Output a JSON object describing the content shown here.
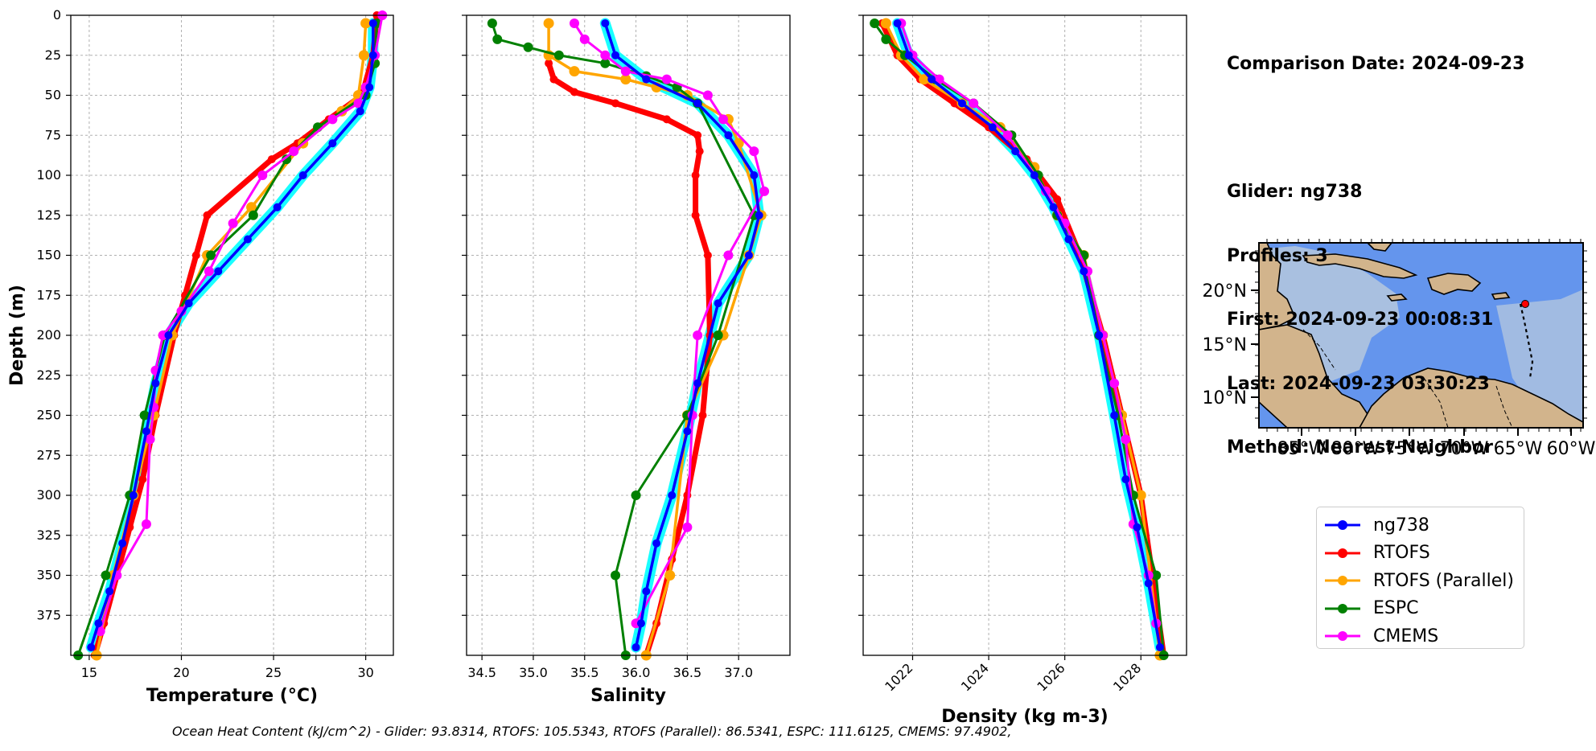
{
  "chart_data": [
    {
      "type": "line",
      "panel": "temperature",
      "xlabel": "Temperature ($^{o}C$)",
      "xlabel_display": "Temperature (°C)",
      "ylabel": "Depth (m)",
      "xlim": [
        14,
        31.5
      ],
      "ylim": [
        400,
        0
      ],
      "xticks": [
        15,
        20,
        25,
        30
      ],
      "yticks": [
        0,
        25,
        50,
        75,
        100,
        125,
        150,
        175,
        200,
        225,
        250,
        275,
        300,
        325,
        350,
        375
      ],
      "grid": true,
      "series": [
        {
          "name": "ng738",
          "color": "#0000ff",
          "x": [
            30.4,
            30.4,
            30.2,
            29.7,
            28.2,
            26.6,
            25.2,
            23.6,
            22.0,
            20.4,
            19.3,
            18.6,
            18.1,
            17.4,
            16.8,
            16.1,
            15.5,
            15.1
          ],
          "y": [
            5,
            25,
            45,
            60,
            80,
            100,
            120,
            140,
            160,
            180,
            200,
            230,
            260,
            300,
            330,
            360,
            380,
            395
          ]
        },
        {
          "name": "RTOFS",
          "color": "#ff0000",
          "x": [
            30.6,
            30.4,
            29.8,
            28.0,
            26.3,
            24.9,
            21.4,
            20.8,
            20.2,
            19.6,
            18.6,
            17.9,
            17.2,
            16.5,
            15.8,
            15.3
          ],
          "y": [
            0,
            25,
            50,
            65,
            80,
            90,
            125,
            150,
            175,
            200,
            250,
            290,
            320,
            350,
            380,
            400
          ]
        },
        {
          "name": "RTOFS (Parallel)",
          "color": "#ffa500",
          "x": [
            30.0,
            29.9,
            29.6,
            28.7,
            26.6,
            23.8,
            21.4,
            19.5,
            18.5,
            17.4,
            16.3,
            15.4
          ],
          "y": [
            5,
            25,
            50,
            60,
            80,
            120,
            150,
            200,
            250,
            300,
            350,
            400
          ]
        },
        {
          "name": "ESPC",
          "color": "#008000",
          "x": [
            30.6,
            30.5,
            30.0,
            27.4,
            25.7,
            23.9,
            21.6,
            19.1,
            18.0,
            17.2,
            15.9,
            14.4
          ],
          "y": [
            5,
            30,
            50,
            70,
            90,
            125,
            150,
            200,
            250,
            300,
            350,
            400
          ]
        },
        {
          "name": "CMEMS",
          "color": "#ff00ff",
          "x": [
            30.9,
            30.5,
            30.0,
            29.6,
            28.2,
            26.1,
            24.4,
            22.8,
            21.5,
            20.0,
            19.0,
            18.6,
            18.5,
            18.3,
            18.1,
            16.5,
            15.6
          ],
          "y": [
            0,
            25,
            45,
            55,
            65,
            85,
            100,
            130,
            160,
            185,
            200,
            222,
            245,
            265,
            318,
            350,
            385
          ]
        }
      ]
    },
    {
      "type": "line",
      "panel": "salinity",
      "xlabel": "Salinity",
      "xlim": [
        34.35,
        37.5
      ],
      "ylim": [
        400,
        0
      ],
      "xticks": [
        34.5,
        35.0,
        35.5,
        36.0,
        36.5,
        37.0
      ],
      "xtick_labels": [
        "34.5",
        "35.0",
        "35.5",
        "36.0",
        "36.5",
        "37.0"
      ],
      "grid": true,
      "series": [
        {
          "name": "ng738",
          "color": "#0000ff",
          "x": [
            35.7,
            35.8,
            36.1,
            36.6,
            36.9,
            37.15,
            37.2,
            37.1,
            36.8,
            36.6,
            36.5,
            36.35,
            36.2,
            36.1,
            36.05,
            36.0
          ],
          "y": [
            5,
            25,
            40,
            55,
            75,
            100,
            125,
            150,
            180,
            230,
            260,
            300,
            330,
            360,
            380,
            395
          ]
        },
        {
          "name": "RTOFS",
          "color": "#ff0000",
          "x": [
            35.15,
            35.2,
            35.4,
            35.8,
            36.3,
            36.6,
            36.62,
            36.58,
            36.58,
            36.7,
            36.72,
            36.65,
            36.5,
            36.35,
            36.2,
            36.1
          ],
          "y": [
            30,
            40,
            48,
            55,
            65,
            75,
            85,
            100,
            125,
            150,
            200,
            250,
            300,
            340,
            380,
            400
          ]
        },
        {
          "name": "RTOFS (Parallel)",
          "color": "#ffa500",
          "x": [
            35.15,
            35.15,
            35.4,
            35.9,
            36.2,
            36.5,
            36.9,
            37.0,
            37.22,
            37.1,
            36.85,
            36.5,
            36.33,
            36.1
          ],
          "y": [
            5,
            25,
            35,
            40,
            45,
            50,
            65,
            80,
            125,
            150,
            200,
            250,
            350,
            400
          ]
        },
        {
          "name": "ESPC",
          "color": "#008000",
          "x": [
            34.6,
            34.65,
            34.95,
            35.25,
            35.7,
            36.1,
            36.4,
            36.6,
            37.15,
            36.8,
            36.5,
            36.0,
            35.8,
            35.9
          ],
          "y": [
            5,
            15,
            20,
            25,
            30,
            38,
            45,
            55,
            125,
            200,
            250,
            300,
            350,
            400
          ]
        },
        {
          "name": "CMEMS",
          "color": "#ff00ff",
          "x": [
            35.4,
            35.5,
            35.7,
            35.9,
            36.3,
            36.7,
            36.85,
            37.15,
            37.25,
            36.9,
            36.6,
            36.55,
            36.5,
            36.0
          ],
          "y": [
            5,
            15,
            25,
            35,
            40,
            50,
            65,
            85,
            110,
            150,
            200,
            250,
            320,
            380
          ]
        }
      ]
    },
    {
      "type": "line",
      "panel": "density",
      "xlabel": "Density (kg m-3)",
      "xlim": [
        1020.7,
        1029.2
      ],
      "ylim": [
        400,
        0
      ],
      "xticks": [
        1022,
        1024,
        1026,
        1028
      ],
      "grid": true,
      "series": [
        {
          "name": "ng738",
          "color": "#0000ff",
          "x": [
            1021.6,
            1021.9,
            1022.5,
            1023.3,
            1024.1,
            1024.7,
            1025.2,
            1025.7,
            1026.1,
            1026.5,
            1026.9,
            1027.3,
            1027.6,
            1027.9,
            1028.2,
            1028.5
          ],
          "y": [
            5,
            25,
            40,
            55,
            70,
            85,
            100,
            120,
            140,
            160,
            200,
            250,
            290,
            320,
            355,
            395
          ]
        },
        {
          "name": "RTOFS",
          "color": "#ff0000",
          "x": [
            1021.2,
            1021.6,
            1022.2,
            1023.1,
            1024.0,
            1025.0,
            1025.8,
            1026.4,
            1027.0,
            1027.5,
            1028.0,
            1028.3,
            1028.6
          ],
          "y": [
            5,
            25,
            40,
            55,
            70,
            90,
            115,
            150,
            200,
            250,
            300,
            350,
            400
          ]
        },
        {
          "name": "RTOFS (Parallel)",
          "color": "#ffa500",
          "x": [
            1021.3,
            1021.7,
            1022.3,
            1023.3,
            1024.3,
            1025.2,
            1025.8,
            1026.5,
            1027.0,
            1027.5,
            1028.0,
            1028.5
          ],
          "y": [
            5,
            25,
            40,
            55,
            70,
            95,
            125,
            150,
            200,
            250,
            300,
            400
          ]
        },
        {
          "name": "ESPC",
          "color": "#008000",
          "x": [
            1021.0,
            1021.3,
            1021.8,
            1022.6,
            1023.6,
            1024.6,
            1025.3,
            1025.8,
            1026.5,
            1026.9,
            1027.4,
            1027.8,
            1028.4,
            1028.6
          ],
          "y": [
            5,
            15,
            25,
            40,
            55,
            75,
            100,
            125,
            150,
            200,
            250,
            300,
            350,
            400
          ]
        },
        {
          "name": "CMEMS",
          "color": "#ff00ff",
          "x": [
            1021.7,
            1022.0,
            1022.7,
            1023.6,
            1024.5,
            1025.5,
            1026.0,
            1026.6,
            1027.0,
            1027.3,
            1027.6,
            1027.8,
            1028.2,
            1028.4
          ],
          "y": [
            5,
            25,
            40,
            55,
            75,
            110,
            130,
            160,
            200,
            230,
            265,
            318,
            350,
            380
          ]
        }
      ]
    }
  ],
  "info": {
    "comparison_date": "Comparison Date: 2024-09-23",
    "glider": "Glider: ng738",
    "profiles": "Profiles: 3",
    "first": "First: 2024-09-23 00:08:31",
    "last": "Last: 2024-09-23 03:30:23",
    "method": "Method: Nearest-Neighbor"
  },
  "map": {
    "lat_ticks": [
      "20°N",
      "15°N",
      "10°N"
    ],
    "lon_ticks": [
      "85°W",
      "80°W",
      "75°W",
      "70°W",
      "65°W",
      "60°W"
    ],
    "glider_marker_color": "#ff0000",
    "ocean_color": "#6495ed",
    "shelf_color": "#b0c4de",
    "land_color": "#d2b48c"
  },
  "legend": {
    "items": [
      {
        "label": "ng738",
        "color": "#0000ff"
      },
      {
        "label": "RTOFS",
        "color": "#ff0000"
      },
      {
        "label": "RTOFS (Parallel)",
        "color": "#ffa500"
      },
      {
        "label": "ESPC",
        "color": "#008000"
      },
      {
        "label": "CMEMS",
        "color": "#ff00ff"
      }
    ]
  },
  "footer": "Ocean Heat Content (kJ/cm^2) - Glider: 93.8314,  RTOFS: 105.5343,  RTOFS (Parallel): 86.5341,  ESPC: 111.6125,  CMEMS: 97.4902,"
}
